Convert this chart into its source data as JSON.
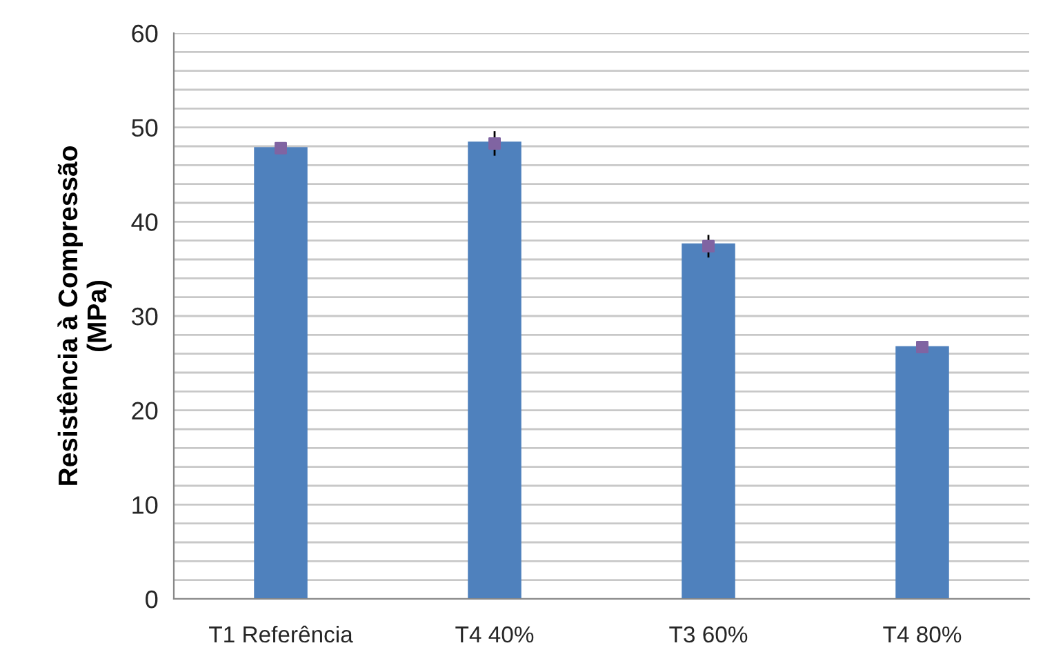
{
  "chart_data": {
    "type": "bar",
    "ylabel": "Resistência à Compressão\n(MPa)",
    "categories": [
      "T1 Referência",
      "T4 40%",
      "T3 60%",
      "T4 80%"
    ],
    "series": [
      {
        "color": "#4f81bd",
        "values": [
          47.9,
          48.5,
          37.7,
          26.8
        ]
      },
      {
        "type": "scatter",
        "color": "#8064a2",
        "values": [
          47.8,
          48.3,
          37.4,
          26.7
        ],
        "errors": [
          null,
          1.3,
          1.2,
          null
        ]
      }
    ],
    "ylim": [
      0,
      60
    ],
    "yticks": [
      0,
      {
        "value": 2,
        "label": null
      },
      {
        "value": 4,
        "label": null
      },
      {
        "value": 6,
        "label": null
      },
      {
        "value": 8,
        "label": null
      },
      10,
      {
        "value": 12,
        "label": null
      },
      {
        "value": 14,
        "label": null
      },
      {
        "value": 16,
        "label": null
      },
      {
        "value": 18,
        "label": null
      },
      20,
      {
        "value": 22,
        "label": null
      },
      {
        "value": 24,
        "label": null
      },
      {
        "value": 26,
        "label": null
      },
      {
        "value": 28,
        "label": null
      },
      30,
      {
        "value": 32,
        "label": null
      },
      {
        "value": 34,
        "label": null
      },
      {
        "value": 36,
        "label": null
      },
      {
        "value": 38,
        "label": null
      },
      40,
      {
        "value": 42,
        "label": null
      },
      {
        "value": 44,
        "label": null
      },
      {
        "value": 46,
        "label": null
      },
      {
        "value": 48,
        "label": null
      },
      50,
      {
        "value": 52,
        "label": null
      },
      {
        "value": 54,
        "label": null
      },
      {
        "value": 56,
        "label": null
      },
      {
        "value": 58,
        "label": null
      },
      60
    ],
    "grid": "y",
    "marker": "square"
  }
}
